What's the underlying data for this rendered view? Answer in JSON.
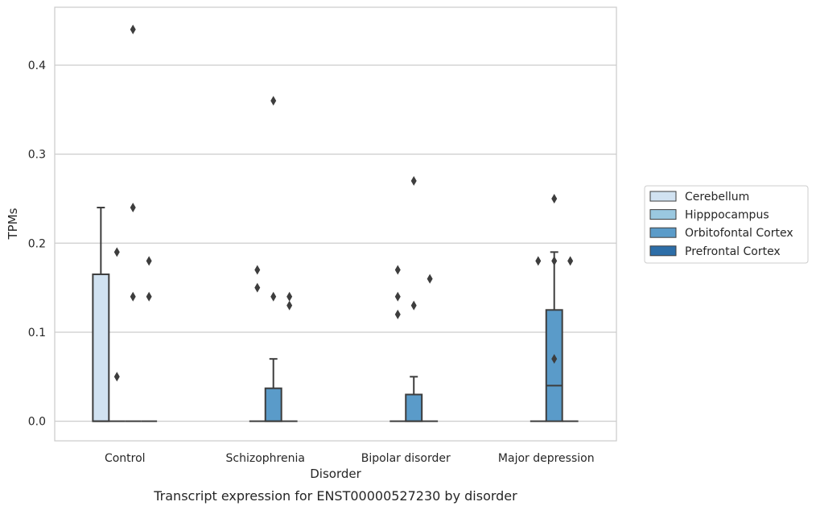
{
  "chart_data": {
    "type": "box",
    "title": "",
    "caption": "Transcript expression for ENST00000527230 by disorder",
    "xlabel": "Disorder",
    "ylabel": "TPMs",
    "ylim": [
      -0.022,
      0.465
    ],
    "yticks": [
      "0.0",
      "0.1",
      "0.2",
      "0.3",
      "0.4"
    ],
    "grid": "horizontal",
    "legend_position": "right",
    "categories": [
      "Control",
      "Schizophrenia",
      "Bipolar disorder",
      "Major depression"
    ],
    "series": [
      {
        "name": "Cerebellum",
        "color": "#d1e2f1",
        "boxes": [
          {
            "q1": 0,
            "median": 0,
            "q3": 0.165,
            "whisker_low": 0,
            "whisker_high": 0.24,
            "outliers": []
          },
          null,
          null,
          null
        ]
      },
      {
        "name": "Hipppocampus",
        "color": "#9ac8e0",
        "boxes": [
          {
            "q1": 0,
            "median": 0,
            "q3": 0,
            "whisker_low": 0,
            "whisker_high": 0,
            "outliers": [
              0.19,
              0.05
            ]
          },
          {
            "q1": 0,
            "median": 0,
            "q3": 0,
            "whisker_low": 0,
            "whisker_high": 0,
            "outliers": [
              0.17,
              0.15
            ]
          },
          {
            "q1": 0,
            "median": 0,
            "q3": 0,
            "whisker_low": 0,
            "whisker_high": 0,
            "outliers": [
              0.17,
              0.14,
              0.12
            ]
          },
          {
            "q1": 0,
            "median": 0,
            "q3": 0,
            "whisker_low": 0,
            "whisker_high": 0,
            "outliers": [
              0.18
            ]
          }
        ]
      },
      {
        "name": "Orbitofontal Cortex",
        "color": "#5a9bc9",
        "boxes": [
          {
            "q1": 0,
            "median": 0,
            "q3": 0,
            "whisker_low": 0,
            "whisker_high": 0,
            "outliers": [
              0.44,
              0.24,
              0.14
            ]
          },
          {
            "q1": 0,
            "median": 0,
            "q3": 0.037,
            "whisker_low": 0,
            "whisker_high": 0.07,
            "outliers": [
              0.36,
              0.14
            ]
          },
          {
            "q1": 0,
            "median": 0,
            "q3": 0.03,
            "whisker_low": 0,
            "whisker_high": 0.05,
            "outliers": [
              0.27,
              0.13
            ]
          },
          {
            "q1": 0,
            "median": 0.04,
            "q3": 0.125,
            "whisker_low": 0,
            "whisker_high": 0.19,
            "outliers": [
              0.25,
              0.18,
              0.07
            ]
          }
        ]
      },
      {
        "name": "Prefrontal Cortex",
        "color": "#2d6ea8",
        "boxes": [
          {
            "q1": 0,
            "median": 0,
            "q3": 0,
            "whisker_low": 0,
            "whisker_high": 0,
            "outliers": [
              0.18,
              0.14
            ]
          },
          {
            "q1": 0,
            "median": 0,
            "q3": 0,
            "whisker_low": 0,
            "whisker_high": 0,
            "outliers": [
              0.14,
              0.13
            ]
          },
          {
            "q1": 0,
            "median": 0,
            "q3": 0,
            "whisker_low": 0,
            "whisker_high": 0,
            "outliers": [
              0.16
            ]
          },
          {
            "q1": 0,
            "median": 0,
            "q3": 0,
            "whisker_low": 0,
            "whisker_high": 0,
            "outliers": [
              0.18
            ]
          }
        ]
      }
    ]
  }
}
